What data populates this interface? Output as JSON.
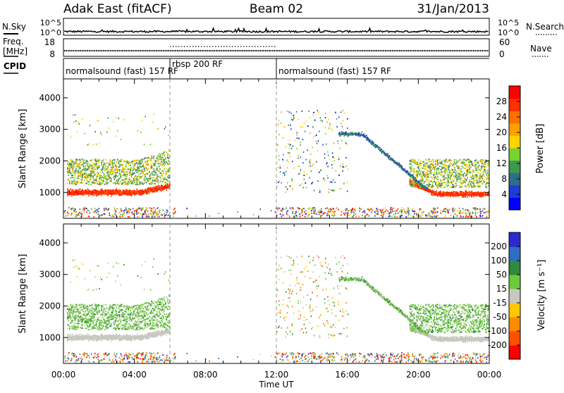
{
  "header": {
    "station": "Adak East (fitACF)",
    "beam": "Beam 02",
    "date": "31/Jan/2013"
  },
  "strips": {
    "nsky_label": "N.Sky",
    "nsearch_label": "N.Search",
    "freq_label_1": "Freq.",
    "freq_label_2": "[MHz]",
    "nave_label": "Nave",
    "cpid_label": "CPID",
    "noise_ticks": [
      "10^5",
      "10^0"
    ],
    "freq_ticks": [
      "18",
      "8"
    ],
    "nave_ticks": [
      "60",
      "0"
    ]
  },
  "cpid_segments": [
    {
      "label": "normalsound (fast) 157 RF",
      "start_hour": 0,
      "end_hour": 6
    },
    {
      "label": "rbsp 200 RF",
      "start_hour": 6,
      "end_hour": 12
    },
    {
      "label": "normalsound (fast) 157 RF",
      "start_hour": 12,
      "end_hour": 24
    }
  ],
  "chart_data": [
    {
      "type": "heatmap",
      "quantity": "power",
      "xlabel": "Time UT",
      "ylabel": "Slant Range [km]",
      "xlim": [
        0,
        24
      ],
      "ylim": [
        180,
        4600
      ],
      "xticks": [
        "00:00",
        "04:00",
        "08:00",
        "12:00",
        "16:00",
        "20:00",
        "00:00"
      ],
      "yticks": [
        1000,
        2000,
        3000,
        4000
      ],
      "colorbar": {
        "label": "Power [dB]",
        "ticks": [
          "4",
          "8",
          "12",
          "16",
          "20",
          "24",
          "28"
        ],
        "colors": [
          "#0000ff",
          "#1e3cd2",
          "#2e6e8a",
          "#3c9a4c",
          "#78d232",
          "#ffd400",
          "#ffa000",
          "#ff7000",
          "#ff3000",
          "#ff0000"
        ]
      },
      "features": [
        {
          "name": "near-range echo band",
          "start_hour": 0.2,
          "end_hour": 5.6,
          "range_km": [
            850,
            1150
          ],
          "level": "strong"
        },
        {
          "name": "far-range scatter",
          "start_hour": 0.2,
          "end_hour": 6,
          "range_km": [
            1200,
            2200
          ],
          "level": "moderate"
        },
        {
          "name": "evening band",
          "start_hour": 19.5,
          "end_hour": 24,
          "range_km": [
            800,
            1100
          ],
          "level": "strong"
        }
      ]
    },
    {
      "type": "heatmap",
      "quantity": "velocity",
      "xlabel": "Time UT",
      "ylabel": "Slant Range [km]",
      "xlim": [
        0,
        24
      ],
      "ylim": [
        180,
        4600
      ],
      "xticks": [
        "00:00",
        "04:00",
        "08:00",
        "12:00",
        "16:00",
        "20:00",
        "00:00"
      ],
      "yticks": [
        1000,
        2000,
        3000,
        4000
      ],
      "colorbar": {
        "label": "Velocity [m s⁻¹]",
        "ticks": [
          "200",
          "100",
          "50",
          "15",
          "-15",
          "-50",
          "-100",
          "-200"
        ],
        "colors": [
          "#2a2ad0",
          "#2e6ec0",
          "#2e8a3c",
          "#6ec83c",
          "#c8c8c0",
          "#ffc800",
          "#ff8c00",
          "#ff5000",
          "#ff0000"
        ]
      },
      "features": [
        {
          "name": "ground scatter",
          "start_hour": 0.2,
          "end_hour": 6,
          "range_km": [
            800,
            1300
          ],
          "level": "zero"
        },
        {
          "name": "evening ground scatter",
          "start_hour": 19.5,
          "end_hour": 24,
          "range_km": [
            800,
            1100
          ],
          "level": "zero"
        }
      ]
    }
  ]
}
